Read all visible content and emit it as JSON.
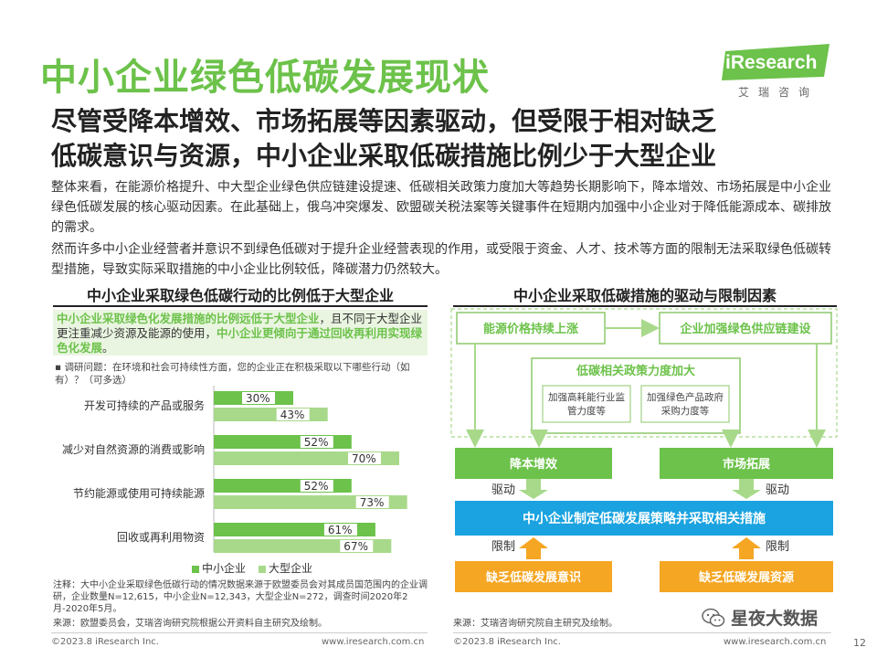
{
  "title": "中小企业绿色低碳发展现状",
  "logo": {
    "brand": "iResearch",
    "sub": "艾瑞咨询"
  },
  "headline": [
    "尽管受降本增效、市场拓展等因素驱动，但受限于相对缺乏",
    "低碳意识与资源，中小企业采取低碳措施比例少于大型企业"
  ],
  "paragraphs": [
    "整体来看，在能源价格提升、中大型企业绿色供应链建设提速、低碳相关政策力度加大等趋势长期影响下，降本增效、市场拓展是中小企业绿色低碳发展的核心驱动因素。在此基础上，俄乌冲突爆发、欧盟碳关税法案等关键事件在短期内加强中小企业对于降低能源成本、碳排放的需求。",
    "然而许多中小企业经营者并意识不到绿色低碳对于提升企业经营表现的作用，或受限于资金、人才、技术等方面的限制无法采取绿色低碳转型措施，导致实际采取措施的中小企业比例较低，降碳潜力仍然较大。"
  ],
  "left_panel": {
    "title": "中小企业采取绿色低碳行动的比例低于大型企业",
    "highlight": {
      "part1": "中小企业采取绿色化发展措施的比例远低于大型企业",
      "part2": "，且不同于大型企业更注重减少资源及能源的使用，",
      "part3": "中小企业更倾向于通过回收再利用实现绿色化发展",
      "part4": "。"
    },
    "survey": "调研问题：在环境和社会可持续性方面，您的企业正在积极采取以下哪些行动（如有）？（可多选）",
    "note": "注释：大中小企业采取绿色低碳行动的情况数据来源于欧盟委员会对其成员国范围内的企业调研，企业数量N=12,615，中小企业N=12,343，大型企业N=272，调查时间2020年2月-2020年5月。",
    "source": "来源：欧盟委员会，艾瑞咨询研究院根据公开资料自主研究及绘制。"
  },
  "chart_data": {
    "type": "bar",
    "orientation": "horizontal",
    "categories": [
      "开发可持续的产品或服务",
      "减少对自然资源的消费或影响",
      "节约能源或使用可持续能源",
      "回收或再利用物资"
    ],
    "series": [
      {
        "name": "中小企业",
        "values": [
          30,
          52,
          52,
          61
        ],
        "color": "#6cc24a"
      },
      {
        "name": "大型企业",
        "values": [
          43,
          70,
          73,
          67
        ],
        "color": "#a8d98a"
      }
    ],
    "unit": "%",
    "legend": "bottom",
    "grid": false
  },
  "right_panel": {
    "title": "中小企业采取低碳措施的驱动与限制因素",
    "energy_price": "能源价格持续上涨",
    "supply_chain": "企业加强绿色供应链建设",
    "policy": "低碳相关政策力度加大",
    "policy_sub1": "加强高耗能行业监管力度等",
    "policy_sub2": "加强绿色产品政府采购力度等",
    "cost": "降本增效",
    "market": "市场拓展",
    "drive_label": "驱动",
    "strategy": "中小企业制定低碳发展策略并采取相关措施",
    "limit_label": "限制",
    "awareness": "缺乏低碳发展意识",
    "resources": "缺乏低碳发展资源",
    "source": "来源：艾瑞咨询研究院自主研究及绘制。"
  },
  "footer": {
    "left_copyright": "©2023.8 iResearch Inc.",
    "left_url": "www.iresearch.com.cn",
    "right_copyright": "©2023.8 iResearch Inc.",
    "right_url": "www.iresearch.com.cn",
    "page": "12"
  },
  "watermark": "星夜大数据",
  "colors": {
    "green": "#6cc24a",
    "light_green": "#a8d98a",
    "blue": "#1aa3e0",
    "orange": "#f5a623",
    "text": "#333333"
  }
}
